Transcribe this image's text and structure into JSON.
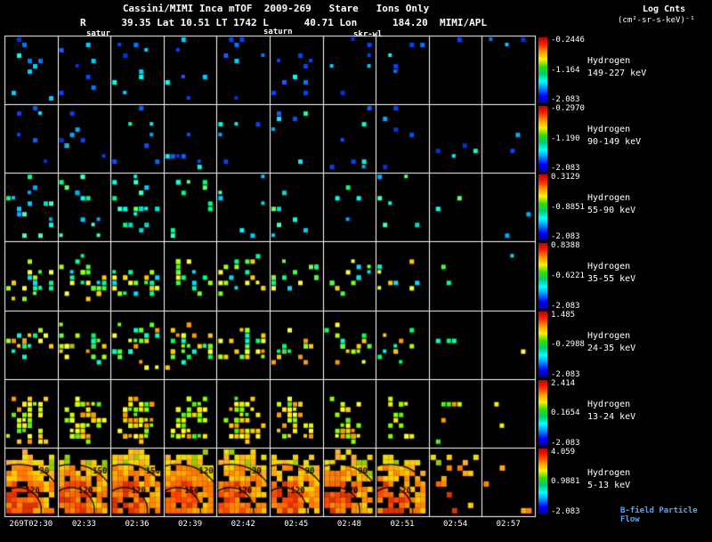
{
  "header": {
    "title": "Cassini/MIMI Inca mTOF  2009-269   Stare   Ions Only",
    "info_line": "R      39.35 Lat 10.51 LT 1742 L      40.71 Lon      184.20  MIMI/APL",
    "log_label": "Log Cnts",
    "log_units": "(cm²-sr-s-keV)⁻¹"
  },
  "annotations": [
    "satur",
    "saturn",
    "skr-wl"
  ],
  "colors": {
    "background": "#000000",
    "text": "#ffffff",
    "grid": "#ffffff",
    "bfield_label": "#4fa8ff",
    "colorbar_gradient": [
      "#bb0000",
      "#ff2200",
      "#ff9900",
      "#ffee00",
      "#33dd00",
      "#00cc77",
      "#00ffff",
      "#0088ff",
      "#0000ff",
      "#000099"
    ]
  },
  "chart_data": {
    "type": "heatmap",
    "title": "Cassini/MIMI Inca mTOF 2009-269 Stare Ions Only",
    "description": "INCA ion image strips: 7 energy bands (rows) x 10 three-minute time panels (columns); per-row rainbow colorbar of Log Counts",
    "colorbar_units": "Log Cnts (cm²-sr-s-keV)⁻¹",
    "x_axis": {
      "labels": [
        "269T02:30",
        "02:33",
        "02:36",
        "02:39",
        "02:42",
        "02:45",
        "02:48",
        "02:51",
        "02:54",
        "02:57"
      ],
      "cadence": "3 min per panel"
    },
    "bfield_label": "B-field Particle Flow",
    "contour_labels": [
      [
        "120",
        "30"
      ],
      [
        "120",
        "150"
      ],
      [
        "120",
        "150"
      ],
      [
        "150",
        "120"
      ],
      [
        "120",
        "30"
      ],
      [
        "120",
        "90"
      ],
      [
        "120",
        "90"
      ],
      [
        "120"
      ],
      [],
      []
    ],
    "rows": [
      {
        "species": "Hydrogen",
        "energy": "149-227 keV",
        "cbar_top": "-0.2446",
        "cbar_mid": "-1.164",
        "cbar_bottom": "-2.083",
        "distribution": "uniform",
        "density_per_column": [
          9,
          7,
          8,
          6,
          7,
          9,
          6,
          5,
          1,
          3
        ],
        "palette": [
          "#0044ff",
          "#0033dd",
          "#0077ff",
          "#00ccff",
          "#00ffee",
          "#2255ff",
          "#0044ff"
        ]
      },
      {
        "species": "Hydrogen",
        "energy": "90-149 keV",
        "cbar_top": "-0.2970",
        "cbar_mid": "-1.190",
        "cbar_bottom": "-2.083",
        "distribution": "uniform",
        "density_per_column": [
          6,
          8,
          7,
          7,
          5,
          6,
          7,
          5,
          4,
          2
        ],
        "palette": [
          "#0044ff",
          "#0066ff",
          "#00aaff",
          "#00eeff",
          "#0033dd",
          "#00ffcc",
          "#0055ff"
        ]
      },
      {
        "species": "Hydrogen",
        "energy": "55-90 keV",
        "cbar_top": "0.3129",
        "cbar_mid": "-0.8851",
        "cbar_bottom": "-2.083",
        "distribution": "uniform",
        "density_per_column": [
          15,
          13,
          20,
          10,
          6,
          7,
          4,
          6,
          2,
          2
        ],
        "palette": [
          "#00ffee",
          "#00ddcc",
          "#00ff88",
          "#44ffcc",
          "#00aaff",
          "#66ff66",
          "#00ccff"
        ]
      },
      {
        "species": "Hydrogen",
        "energy": "35-55 keV",
        "cbar_top": "0.8388",
        "cbar_mid": "-0.6221",
        "cbar_bottom": "-2.083",
        "distribution": "center",
        "density_per_column": [
          20,
          24,
          22,
          16,
          18,
          14,
          13,
          9,
          2,
          1
        ],
        "palette": [
          "#44ff44",
          "#aaff00",
          "#ffff33",
          "#00ff99",
          "#ffcc00",
          "#00ddff",
          "#77ff33"
        ]
      },
      {
        "species": "Hydrogen",
        "energy": "24-35 keV",
        "cbar_top": "1.485",
        "cbar_mid": "-0.2988",
        "cbar_bottom": "-2.083",
        "distribution": "center",
        "density_per_column": [
          18,
          22,
          24,
          28,
          22,
          14,
          16,
          10,
          3,
          1
        ],
        "palette": [
          "#66ff33",
          "#ffff33",
          "#00ff66",
          "#ffcc00",
          "#aaff00",
          "#00ffcc",
          "#ff9900"
        ]
      },
      {
        "species": "Hydrogen",
        "energy": "13-24 keV",
        "cbar_top": "2.414",
        "cbar_mid": "0.1654",
        "cbar_bottom": "-2.083",
        "distribution": "lower",
        "density_per_column": [
          40,
          45,
          42,
          40,
          38,
          32,
          28,
          14,
          6,
          2
        ],
        "palette": [
          "#ffff33",
          "#ccff00",
          "#ffcc00",
          "#88ff00",
          "#ff9900",
          "#55ee22",
          "#ffee00"
        ]
      },
      {
        "species": "Hydrogen",
        "energy": "5-13 keV",
        "cbar_top": "4.059",
        "cbar_mid": "0.9881",
        "cbar_bottom": "-2.083",
        "distribution": "blob",
        "density_per_column": [
          88,
          88,
          88,
          86,
          85,
          82,
          80,
          68,
          10,
          4
        ],
        "palette": [
          "#ff8800",
          "#ffaa00",
          "#ffcc00",
          "#ff5500"
        ],
        "blob_colors": {
          "inner": [
            "#ff4400",
            "#ff6600",
            "#dd3300",
            "#ff8800"
          ],
          "mid": [
            "#ff8800",
            "#ffaa00",
            "#ff7700",
            "#ffcc00"
          ],
          "outer": [
            "#ffcc00",
            "#ffaa33",
            "#eedd00",
            "#99cc00"
          ]
        }
      }
    ]
  }
}
